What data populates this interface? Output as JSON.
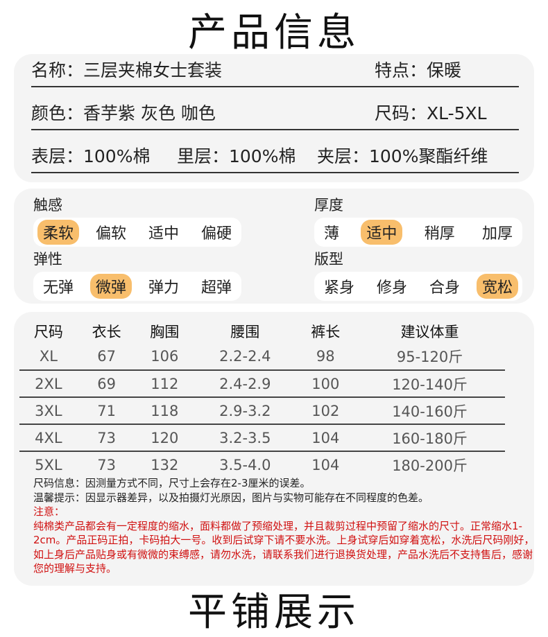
{
  "header": {
    "title": "产品信息"
  },
  "info": {
    "name": "名称：三层夹棉女士套装",
    "feature": "特点：保暖",
    "color": "颜色：香芋紫 灰色 咖色",
    "size": "尺码：XL-5XL",
    "outer": "表层：100%棉",
    "inner": "里层：100%棉",
    "middle": "夹层：100%聚酯纤维"
  },
  "attributes": [
    {
      "label": "触感",
      "options": [
        "柔软",
        "偏软",
        "适中",
        "偏硬"
      ],
      "selected": 0
    },
    {
      "label": "厚度",
      "options": [
        "薄",
        "适中",
        "稍厚",
        "加厚"
      ],
      "selected": 1
    },
    {
      "label": "弹性",
      "options": [
        "无弹",
        "微弹",
        "弹力",
        "超弹"
      ],
      "selected": 1
    },
    {
      "label": "版型",
      "options": [
        "紧身",
        "修身",
        "合身",
        "宽松"
      ],
      "selected": 3
    }
  ],
  "accent_color": "#f8be6c",
  "size_table": {
    "headers": [
      "尺码",
      "衣长",
      "胸围",
      "腰围",
      "裤长",
      "建议体重"
    ],
    "rows": [
      [
        "XL",
        "67",
        "106",
        "2.2-2.4",
        "98",
        "95-120斤"
      ],
      [
        "2XL",
        "69",
        "112",
        "2.4-2.9",
        "100",
        "120-140斤"
      ],
      [
        "3XL",
        "71",
        "118",
        "2.9-3.2",
        "102",
        "140-160斤"
      ],
      [
        "4XL",
        "73",
        "120",
        "3.2-3.5",
        "104",
        "160-180斤"
      ],
      [
        "5XL",
        "73",
        "132",
        "3.5-4.0",
        "104",
        "180-200斤"
      ]
    ]
  },
  "notes": {
    "size_info": "尺码信息：因测量方式不同，尺寸上会存在2-3厘米的误差。",
    "tip": "温馨提示：因显示器差异，以及拍摄灯光原因，图片与实物可能存在不同程度的色差。",
    "attention": "注意：",
    "attention_text": "纯棉类产品都会有一定程度的缩水，面料都做了预缩处理，并且裁剪过程中预留了缩水的尺寸。正常缩水1-2cm。产品正码正拍，卡码拍大一号。收到后试穿下请不要水洗。上身试穿后如穿着宽松，水洗后尺码刚好，如上身后产品贴身或有微微的束缚感，请勿水洗，请联系我们进行退换货处理，产品水洗后不支持售后，感谢您的理解与支持。"
  },
  "footer": {
    "title": "平铺展示"
  }
}
